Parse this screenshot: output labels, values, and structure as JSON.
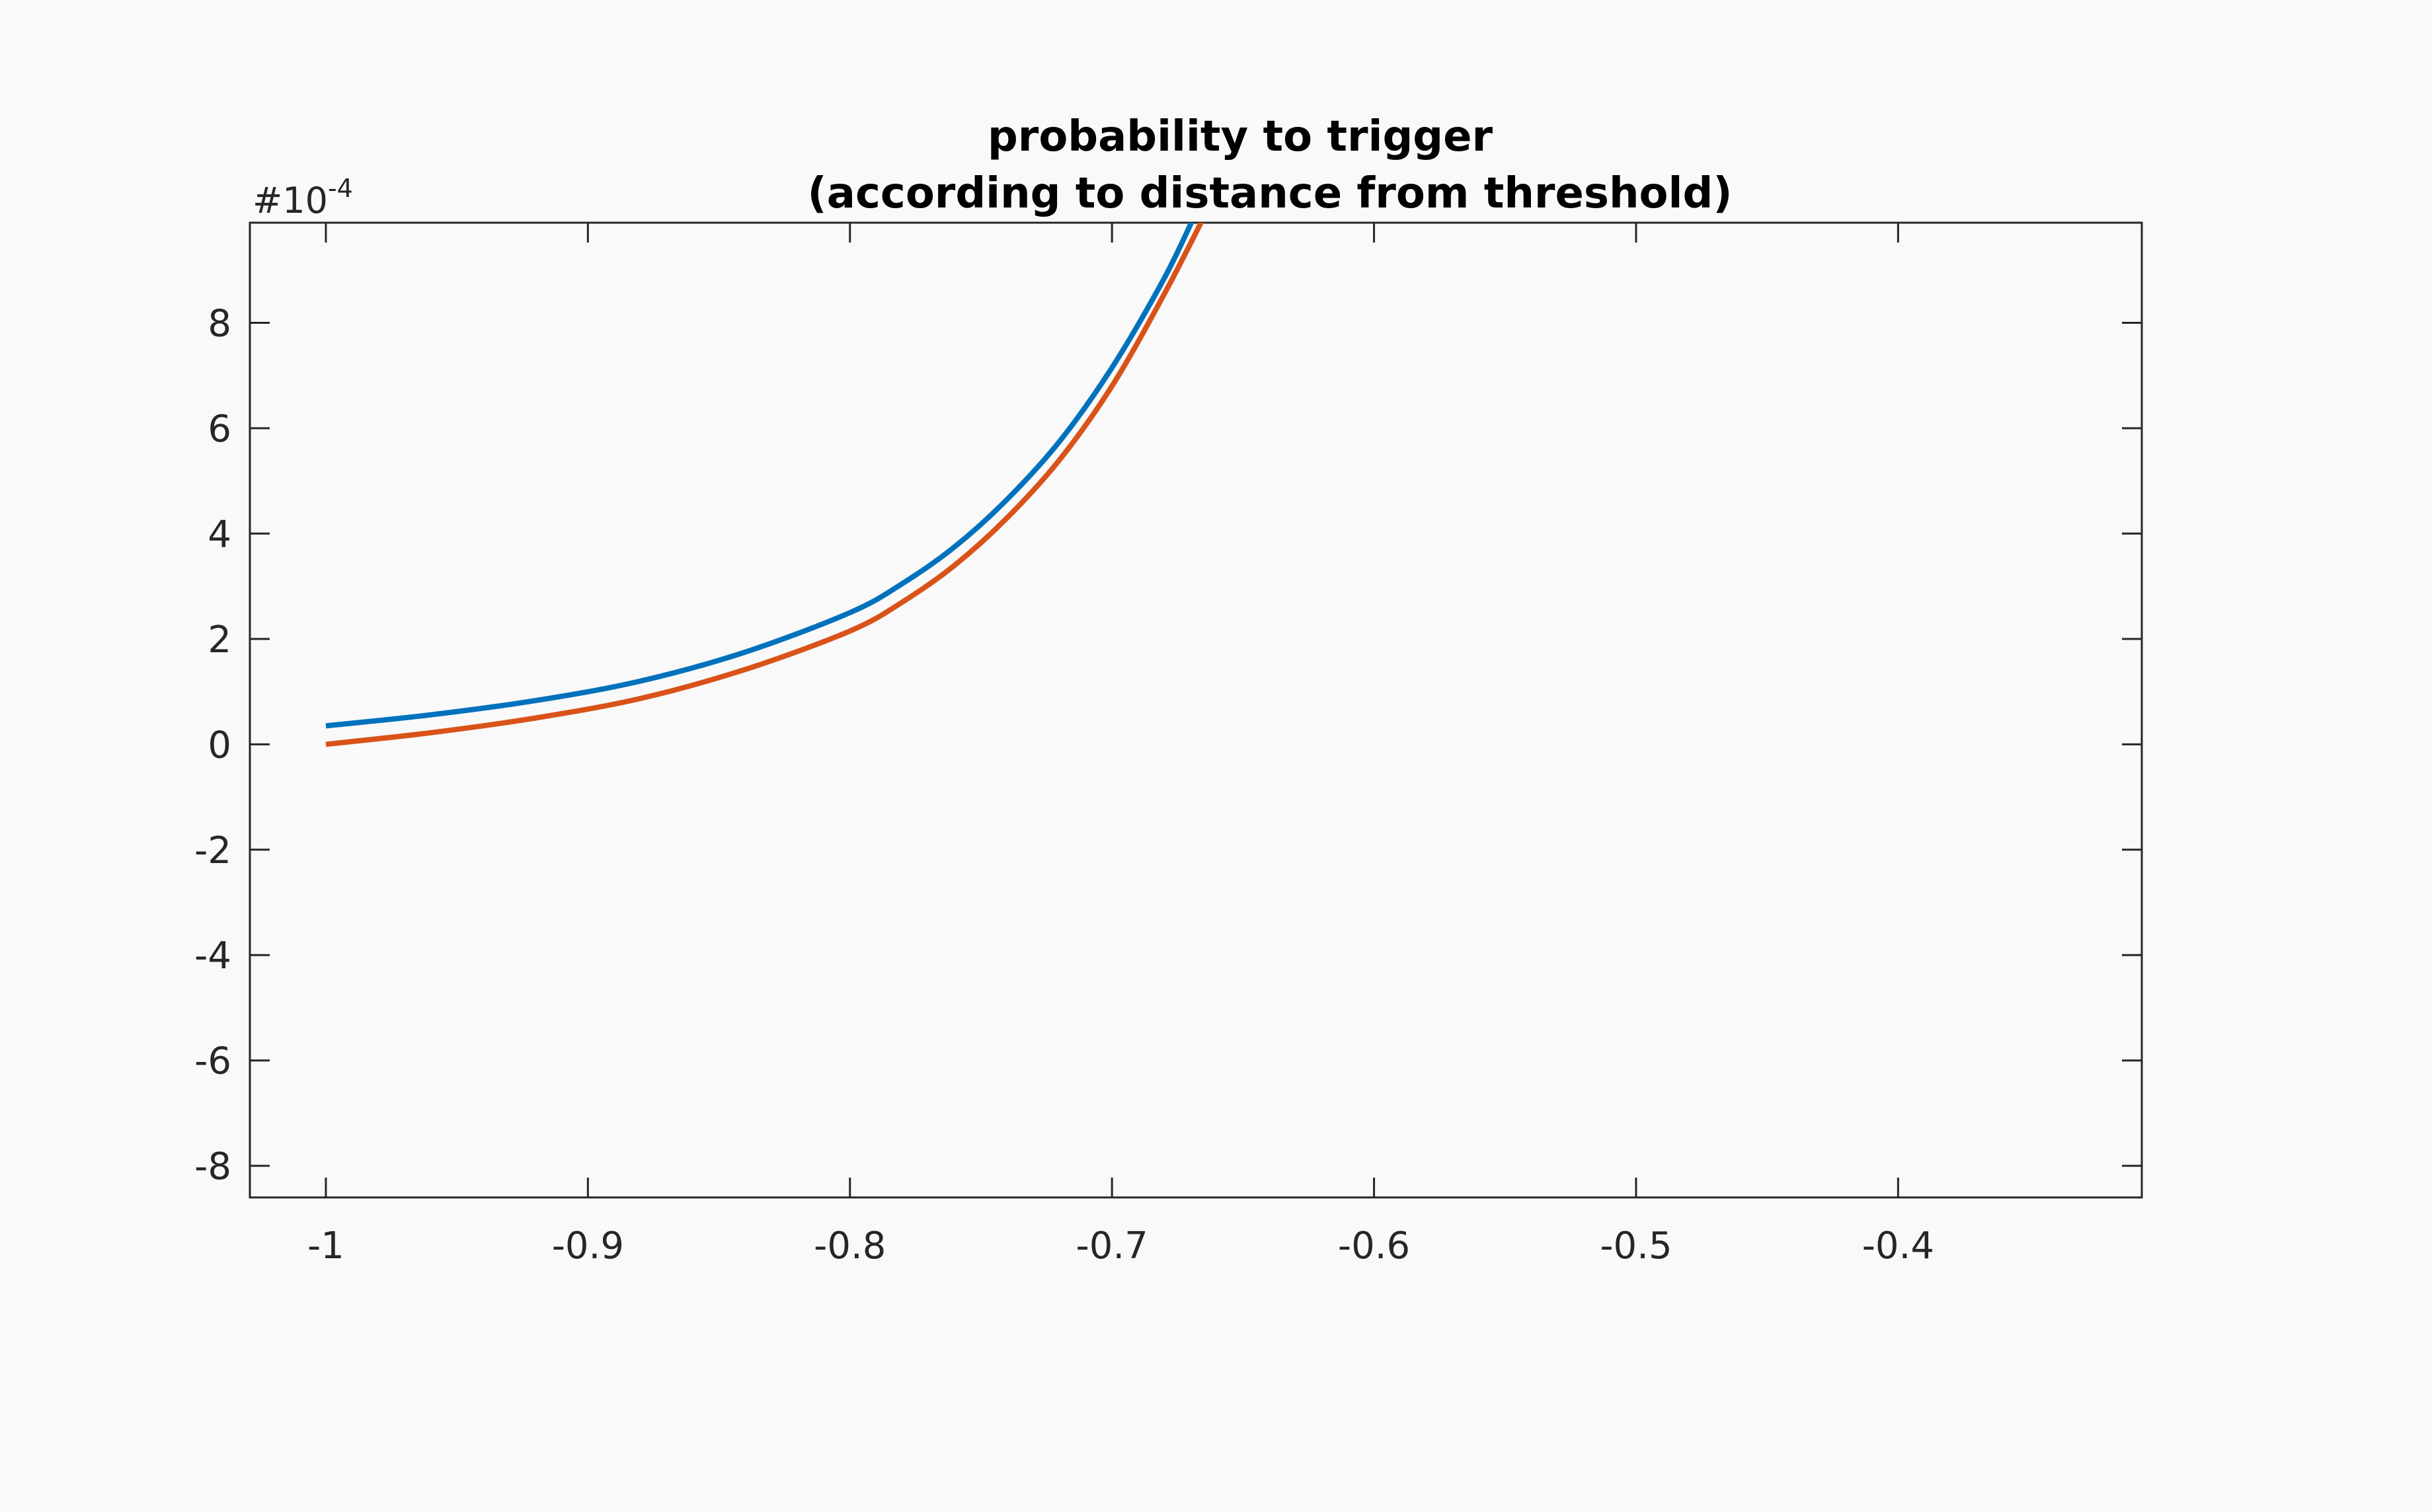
{
  "chart_data": {
    "type": "line",
    "title": [
      "probability to trigger",
      "(according to distance from threshold)"
    ],
    "xlabel": "",
    "ylabel": "",
    "xlim": [
      -1.029,
      -0.307
    ],
    "ylim": [
      -8.6,
      9.9
    ],
    "y_exponent": {
      "base": "#10",
      "power": "-4"
    },
    "x_ticks": [
      -1,
      -0.9,
      -0.8,
      -0.7,
      -0.6,
      -0.5,
      -0.4
    ],
    "x_tick_labels": [
      "-1",
      "-0.9",
      "-0.8",
      "-0.7",
      "-0.6",
      "-0.5",
      "-0.4"
    ],
    "y_ticks": [
      -8,
      -6,
      -4,
      -2,
      0,
      2,
      4,
      6,
      8
    ],
    "y_tick_labels": [
      "-8",
      "-6",
      "-4",
      "-2",
      "0",
      "2",
      "4",
      "6",
      "8"
    ],
    "grid": false,
    "series": [
      {
        "color": "#0072bd",
        "x": [
          -1.0,
          -0.96,
          -0.92,
          -0.88,
          -0.84,
          -0.8,
          -0.78,
          -0.76,
          -0.74,
          -0.72,
          -0.7,
          -0.68,
          -0.667,
          -0.66
        ],
        "y": [
          0.35,
          0.56,
          0.83,
          1.2,
          1.75,
          2.5,
          3.05,
          3.75,
          4.65,
          5.75,
          7.15,
          8.85,
          10.2,
          11.0
        ]
      },
      {
        "color": "#d95319",
        "x": [
          -1.0,
          -0.96,
          -0.92,
          -0.88,
          -0.84,
          -0.8,
          -0.78,
          -0.76,
          -0.74,
          -0.72,
          -0.7,
          -0.68,
          -0.663,
          -0.655
        ],
        "y": [
          0.0,
          0.22,
          0.5,
          0.87,
          1.42,
          2.15,
          2.7,
          3.4,
          4.3,
          5.4,
          6.8,
          8.55,
          10.2,
          11.0
        ]
      }
    ]
  }
}
